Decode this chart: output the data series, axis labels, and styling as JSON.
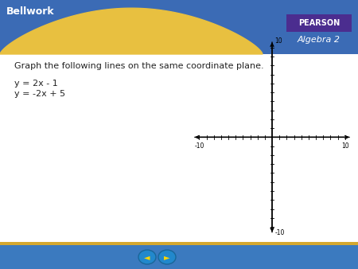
{
  "title_text": "Bellwork",
  "header_bg_color": "#3B6BB5",
  "header_gold_color": "#E8C040",
  "pearson_box_color": "#4B2D8F",
  "algebra_text": "Algebra 2",
  "instruction_text": "Graph the following lines on the same coordinate plane.",
  "equation1": "y = 2x - 1",
  "equation2": "y = -2x + 5",
  "axis_range": [
    -10,
    10
  ],
  "bg_color": "#FFFFFF",
  "footer_bg_color": "#3B7ABF",
  "footer_gold_stripe": "#D4A830",
  "nav_arrow_color": "#2288CC",
  "nav_arrow_border": "#1A6699"
}
